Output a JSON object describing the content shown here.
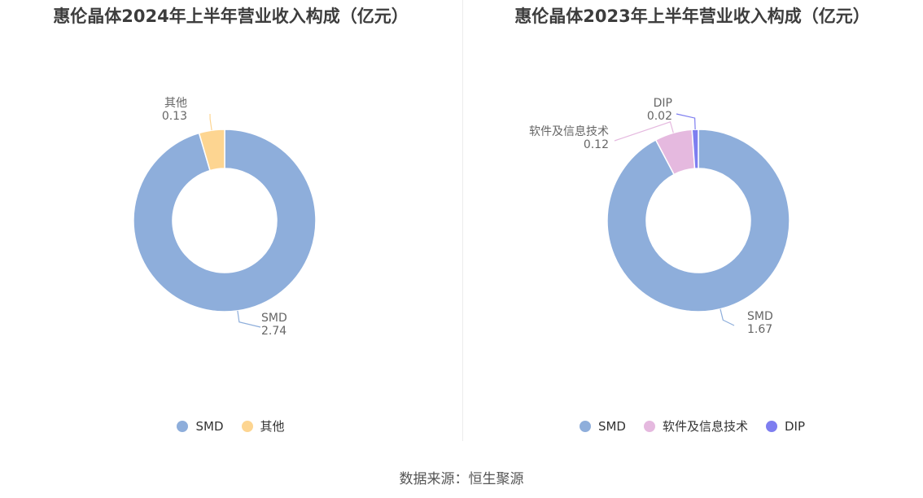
{
  "source_text": "数据来源：恒生聚源",
  "chart_data": [
    {
      "type": "pie",
      "title": "惠伦晶体2024年上半年营业收入构成（亿元）",
      "categories": [
        "SMD",
        "其他"
      ],
      "values": [
        2.74,
        0.13
      ],
      "value_labels": [
        "2.74",
        "0.13"
      ],
      "colors": [
        "#8eaedb",
        "#fdd591"
      ],
      "donut": true,
      "legend_position": "bottom"
    },
    {
      "type": "pie",
      "title": "惠伦晶体2023年上半年营业收入构成（亿元）",
      "categories": [
        "SMD",
        "软件及信息技术",
        "DIP"
      ],
      "values": [
        1.67,
        0.12,
        0.02
      ],
      "value_labels": [
        "1.67",
        "0.12",
        "0.02"
      ],
      "colors": [
        "#8eaedb",
        "#e5b9df",
        "#7e7ef0"
      ],
      "donut": true,
      "legend_position": "bottom"
    }
  ]
}
